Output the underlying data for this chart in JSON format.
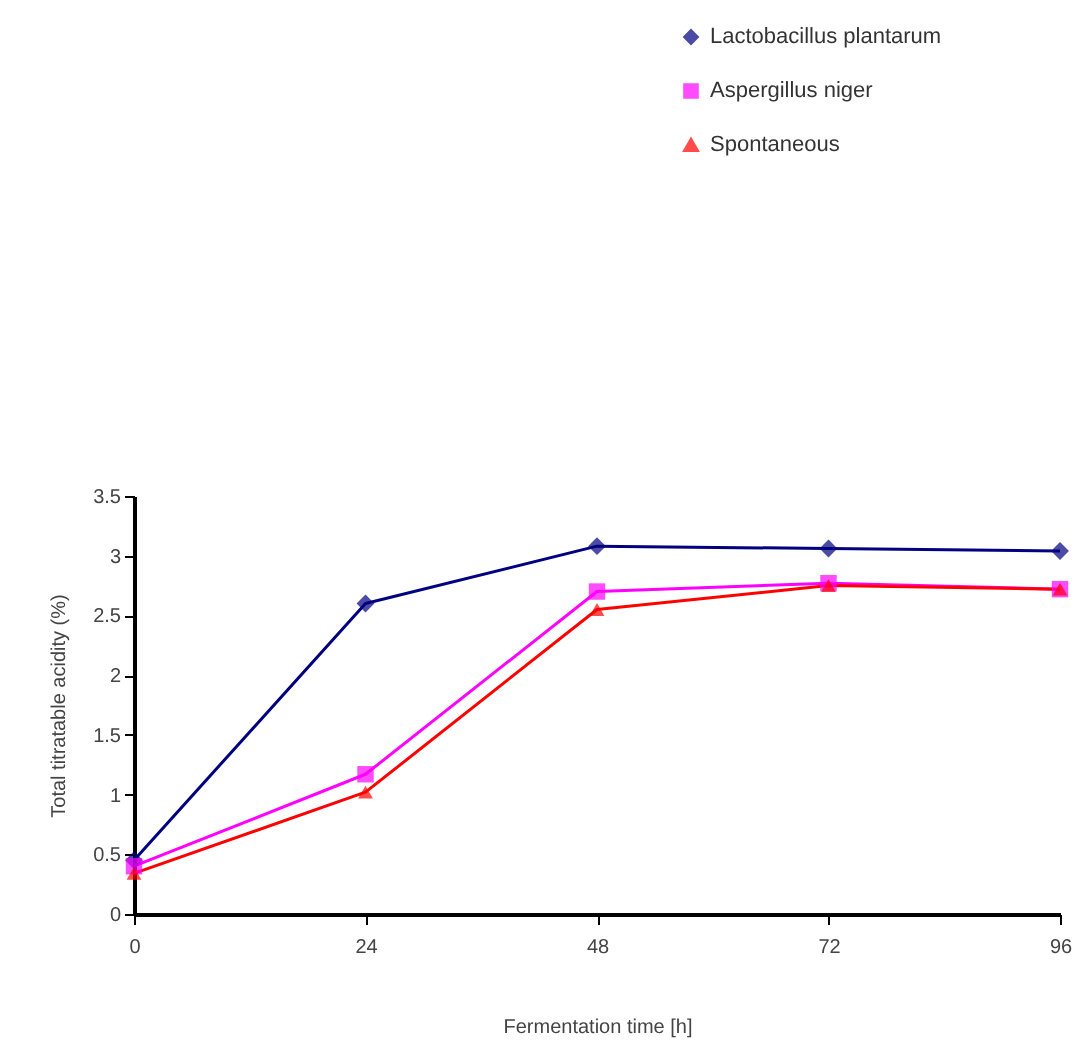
{
  "chart_data": {
    "type": "line",
    "xlabel": "Fermentation time [h]",
    "ylabel": "Total titratable acidity (%)",
    "x": [
      0,
      24,
      48,
      72,
      96
    ],
    "xlim": [
      0,
      96
    ],
    "xticks": [
      0,
      24,
      48,
      72,
      96
    ],
    "ylim": [
      0,
      3.5
    ],
    "yticks": [
      0,
      0.5,
      1,
      1.5,
      2,
      2.5,
      3,
      3.5
    ],
    "grid": false,
    "legend": "top right",
    "line_style": "solid",
    "series": [
      {
        "name": "Lactobacillus plantarum",
        "color": "#000080",
        "marker": "diamond",
        "values": [
          0.45,
          2.6,
          3.08,
          3.06,
          3.04
        ]
      },
      {
        "name": "Aspergillus niger",
        "color": "#ff00ff",
        "marker": "square",
        "values": [
          0.4,
          1.17,
          2.7,
          2.77,
          2.72
        ]
      },
      {
        "name": "Spontaneous",
        "color": "#ff0000",
        "marker": "triangle",
        "values": [
          0.34,
          1.02,
          2.55,
          2.75,
          2.72
        ]
      }
    ]
  }
}
